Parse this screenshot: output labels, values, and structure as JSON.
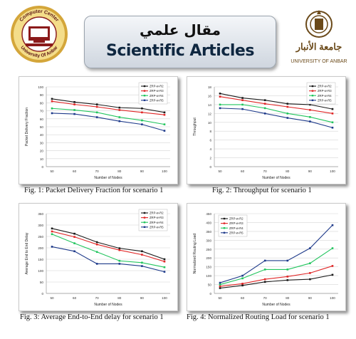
{
  "banner": {
    "arabic_title": "مقال علمي",
    "english_title": "Scientific Articles"
  },
  "logos": {
    "left": {
      "top_text": "Computer Center",
      "bottom_text": "University Of Anbar"
    },
    "right": {
      "arabic_name": "جامعة الأنبار",
      "english_name": "UNIVERSITY OF ANBAR"
    }
  },
  "colors": {
    "R2": "#1a1a1a",
    "R3": "#e02626",
    "R4": "#22c55e",
    "R5": "#1e3a8a"
  },
  "chart_data": [
    {
      "type": "line",
      "caption": "Fig. 1: Packet Delivery Fraction for scenario 1",
      "xlabel": "Number of Nodes",
      "ylabel": "Packet Delivery Fraction",
      "x": [
        50,
        60,
        70,
        80,
        90,
        100
      ],
      "ylim": [
        0,
        100
      ],
      "yticks": [
        0,
        10,
        20,
        30,
        40,
        50,
        60,
        70,
        80,
        90,
        100
      ],
      "legend_position": "top-right",
      "grid": true,
      "series": [
        {
          "name": "ZRP-w-R2",
          "color": "#1a1a1a",
          "values": [
            85,
            81,
            78,
            74,
            73,
            68
          ]
        },
        {
          "name": "ZRP-w-R3",
          "color": "#e02626",
          "values": [
            82,
            78,
            75,
            71,
            68,
            65
          ]
        },
        {
          "name": "ZRP-w-R4",
          "color": "#22c55e",
          "values": [
            73,
            71,
            68,
            62,
            58,
            53
          ]
        },
        {
          "name": "ZRP-w-R5",
          "color": "#1e3a8a",
          "values": [
            67,
            66,
            62,
            57,
            53,
            45
          ]
        }
      ]
    },
    {
      "type": "line",
      "caption": "Fig. 2: Throughput for scenario 1",
      "xlabel": "Number of Nodes",
      "ylabel": "Throughput",
      "x": [
        50,
        60,
        70,
        80,
        90,
        100
      ],
      "ylim": [
        0,
        18
      ],
      "yticks": [
        0,
        2,
        4,
        6,
        8,
        10,
        12,
        14,
        16,
        18
      ],
      "legend_position": "top-right",
      "grid": true,
      "series": [
        {
          "name": "ZRP-w-R2",
          "color": "#1a1a1a",
          "values": [
            16.5,
            15.5,
            15,
            14.2,
            14,
            13
          ]
        },
        {
          "name": "ZRP-w-R3",
          "color": "#e02626",
          "values": [
            15.8,
            15,
            14.2,
            13.5,
            12.8,
            12
          ]
        },
        {
          "name": "ZRP-w-R4",
          "color": "#22c55e",
          "values": [
            14,
            14,
            13.2,
            12,
            11.2,
            10
          ]
        },
        {
          "name": "ZRP-w-R5",
          "color": "#1e3a8a",
          "values": [
            13.2,
            13,
            12,
            11,
            10.2,
            8.8
          ]
        }
      ]
    },
    {
      "type": "line",
      "caption": "Fig. 3: Average End-to-End delay for scenario 1",
      "xlabel": "Number of Nodes",
      "ylabel": "Average End to End Delay",
      "x": [
        50,
        60,
        70,
        80,
        90,
        100
      ],
      "ylim": [
        0,
        350
      ],
      "yticks": [
        0,
        50,
        100,
        150,
        200,
        250,
        300,
        350
      ],
      "legend_position": "top-right",
      "grid": true,
      "series": [
        {
          "name": "ZRP-w-R2",
          "color": "#1a1a1a",
          "values": [
            285,
            262,
            225,
            198,
            185,
            150
          ]
        },
        {
          "name": "ZRP-w-R3",
          "color": "#e02626",
          "values": [
            272,
            248,
            215,
            190,
            170,
            140
          ]
        },
        {
          "name": "ZRP-w-R4",
          "color": "#22c55e",
          "values": [
            260,
            220,
            182,
            143,
            135,
            115
          ]
        },
        {
          "name": "ZRP-w-R5",
          "color": "#1e3a8a",
          "values": [
            205,
            185,
            130,
            130,
            120,
            95
          ]
        }
      ]
    },
    {
      "type": "line",
      "caption": "Fig. 4: Normalized Routing Load for scenario 1",
      "xlabel": "Number of Nodes",
      "ylabel": "Normalized Routing Load",
      "x": [
        50,
        60,
        70,
        80,
        90,
        100
      ],
      "ylim": [
        0,
        450
      ],
      "yticks": [
        0,
        50,
        100,
        150,
        200,
        250,
        300,
        350,
        400,
        450
      ],
      "legend_position": "top-left",
      "grid": true,
      "series": [
        {
          "name": "ZRP-w-R2",
          "color": "#1a1a1a",
          "values": [
            30,
            45,
            65,
            75,
            80,
            105
          ]
        },
        {
          "name": "ZRP-w-R3",
          "color": "#e02626",
          "values": [
            40,
            55,
            80,
            95,
            115,
            155
          ]
        },
        {
          "name": "ZRP-w-R4",
          "color": "#22c55e",
          "values": [
            50,
            85,
            135,
            135,
            170,
            255
          ]
        },
        {
          "name": "ZRP-w-R5",
          "color": "#1e3a8a",
          "values": [
            60,
            100,
            185,
            185,
            255,
            385
          ]
        }
      ]
    }
  ]
}
